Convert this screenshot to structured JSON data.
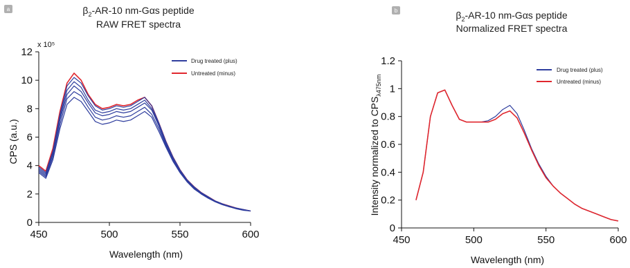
{
  "panels": [
    {
      "badge": "a",
      "title_line1_prefix": "β",
      "title_line1_sub": "2",
      "title_line1_rest": "-AR-10 nm-Gαs peptide",
      "title_line2": "RAW FRET spectra"
    },
    {
      "badge": "b",
      "title_line1_prefix": "β",
      "title_line1_sub": "2",
      "title_line1_rest": "-AR-10 nm-Gαs peptide",
      "title_line2": "Normalized FRET spectra"
    }
  ],
  "colors": {
    "blue": "#2e3d9e",
    "red": "#e0262d",
    "badge": "#b0b0b0"
  },
  "chart_data": [
    {
      "type": "line",
      "xlabel": "Wavelength (nm)",
      "ylabel": "CPS (a.u.)",
      "y_multiplier": "x 10⁵",
      "xlim": [
        450,
        600
      ],
      "ylim": [
        0,
        12
      ],
      "xticks": [
        "450",
        "500",
        "550",
        "600"
      ],
      "yticks": [
        "0",
        "2",
        "4",
        "6",
        "8",
        "10",
        "12"
      ],
      "legend": [
        "Drug treated (plus)",
        "Untreated (minus)"
      ],
      "legend_position": "top-right",
      "x": [
        450,
        455,
        460,
        465,
        470,
        475,
        480,
        485,
        490,
        495,
        500,
        505,
        510,
        515,
        520,
        525,
        530,
        535,
        540,
        545,
        550,
        555,
        560,
        565,
        570,
        575,
        580,
        585,
        590,
        595,
        600
      ],
      "series": [
        {
          "color": "red",
          "values": [
            4.0,
            3.6,
            5.2,
            7.8,
            9.8,
            10.5,
            10.0,
            9.0,
            8.3,
            8.0,
            8.1,
            8.3,
            8.2,
            8.3,
            8.6,
            8.8,
            8.2,
            7.0,
            5.7,
            4.6,
            3.7,
            3.0,
            2.5,
            2.1,
            1.8,
            1.5,
            1.3,
            1.15,
            1.0,
            0.9,
            0.8
          ]
        },
        {
          "color": "blue",
          "values": [
            3.9,
            3.5,
            5.0,
            7.6,
            9.6,
            10.2,
            9.8,
            8.9,
            8.2,
            7.9,
            8.0,
            8.2,
            8.1,
            8.2,
            8.5,
            8.8,
            8.2,
            7.0,
            5.7,
            4.6,
            3.7,
            3.0,
            2.5,
            2.1,
            1.8,
            1.5,
            1.3,
            1.15,
            1.0,
            0.9,
            0.8
          ]
        },
        {
          "color": "blue",
          "values": [
            3.8,
            3.4,
            4.9,
            7.4,
            9.3,
            9.9,
            9.5,
            8.6,
            7.9,
            7.7,
            7.8,
            8.0,
            7.9,
            8.0,
            8.3,
            8.6,
            8.0,
            6.9,
            5.6,
            4.5,
            3.6,
            2.95,
            2.45,
            2.05,
            1.75,
            1.5,
            1.3,
            1.1,
            1.0,
            0.9,
            0.8
          ]
        },
        {
          "color": "blue",
          "values": [
            3.7,
            3.3,
            4.8,
            7.2,
            9.0,
            9.6,
            9.2,
            8.4,
            7.7,
            7.5,
            7.6,
            7.8,
            7.7,
            7.8,
            8.1,
            8.4,
            7.9,
            6.8,
            5.5,
            4.45,
            3.6,
            2.9,
            2.4,
            2.05,
            1.75,
            1.5,
            1.3,
            1.1,
            1.0,
            0.9,
            0.8
          ]
        },
        {
          "color": "blue",
          "values": [
            3.6,
            3.2,
            4.6,
            6.9,
            8.7,
            9.2,
            8.9,
            8.1,
            7.4,
            7.2,
            7.3,
            7.5,
            7.4,
            7.5,
            7.8,
            8.1,
            7.6,
            6.6,
            5.4,
            4.4,
            3.55,
            2.9,
            2.4,
            2.0,
            1.7,
            1.45,
            1.25,
            1.1,
            1.0,
            0.9,
            0.8
          ]
        },
        {
          "color": "blue",
          "values": [
            3.5,
            3.1,
            4.4,
            6.6,
            8.3,
            8.8,
            8.5,
            7.8,
            7.1,
            6.9,
            7.0,
            7.2,
            7.1,
            7.2,
            7.5,
            7.8,
            7.4,
            6.4,
            5.3,
            4.3,
            3.5,
            2.85,
            2.35,
            2.0,
            1.7,
            1.45,
            1.25,
            1.1,
            0.95,
            0.85,
            0.8
          ]
        }
      ]
    },
    {
      "type": "line",
      "xlabel": "Wavelength (nm)",
      "ylabel_prefix": "Intensity normalized to CPS",
      "ylabel_sub": "λ475nm",
      "xlim": [
        450,
        600
      ],
      "ylim": [
        0,
        1.2
      ],
      "xticks": [
        "450",
        "500",
        "550",
        "600"
      ],
      "yticks": [
        "0",
        "0.2",
        "0.4",
        "0.6",
        "0.8",
        "1",
        "1.2"
      ],
      "legend": [
        "Drug treated (plus)",
        "Untreated (minus)"
      ],
      "legend_position": "top-right",
      "x": [
        460,
        465,
        470,
        475,
        480,
        485,
        490,
        495,
        500,
        505,
        510,
        515,
        520,
        525,
        530,
        535,
        540,
        545,
        550,
        555,
        560,
        565,
        570,
        575,
        580,
        585,
        590,
        595,
        600
      ],
      "series": [
        {
          "name": "Drug treated (plus)",
          "color": "blue",
          "values": [
            0.2,
            0.4,
            0.8,
            0.97,
            0.99,
            0.88,
            0.78,
            0.76,
            0.76,
            0.76,
            0.77,
            0.8,
            0.85,
            0.88,
            0.82,
            0.7,
            0.57,
            0.46,
            0.37,
            0.3,
            0.25,
            0.21,
            0.17,
            0.14,
            0.12,
            0.1,
            0.08,
            0.06,
            0.05
          ]
        },
        {
          "name": "Untreated (minus)",
          "color": "red",
          "values": [
            0.2,
            0.4,
            0.8,
            0.97,
            0.99,
            0.88,
            0.78,
            0.76,
            0.76,
            0.76,
            0.76,
            0.78,
            0.82,
            0.84,
            0.79,
            0.68,
            0.56,
            0.45,
            0.36,
            0.3,
            0.25,
            0.21,
            0.17,
            0.14,
            0.12,
            0.1,
            0.08,
            0.06,
            0.05
          ]
        }
      ]
    }
  ]
}
